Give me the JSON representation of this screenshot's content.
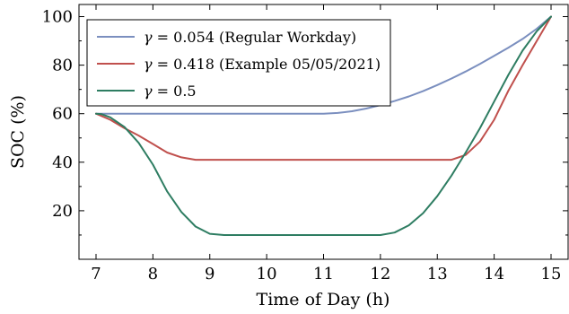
{
  "chart_data": {
    "type": "line",
    "xlabel": "Time of Day (h)",
    "ylabel": "SOC (%)",
    "xlim": [
      6.7,
      15.3
    ],
    "ylim": [
      0,
      105
    ],
    "xticks": [
      7,
      8,
      9,
      10,
      11,
      12,
      13,
      14,
      15
    ],
    "yticks": [
      20,
      40,
      60,
      80,
      100
    ],
    "grid": false,
    "legend_position": "top-left",
    "series": [
      {
        "name": "γ = 0.054 (Regular Workday)",
        "gamma_symbol": "γ",
        "gamma_eq": " = 0.054",
        "desc": "(Regular Workday)",
        "color": "#7b8fbf",
        "x": [
          7,
          7.5,
          8,
          8.5,
          9,
          9.5,
          10,
          10.5,
          11,
          11.25,
          11.5,
          11.75,
          12,
          12.25,
          12.5,
          12.75,
          13,
          13.25,
          13.5,
          13.75,
          14,
          14.25,
          14.5,
          14.75,
          15
        ],
        "y": [
          60,
          60,
          60,
          60,
          60,
          60,
          60,
          60,
          60,
          60.3,
          61,
          62.1,
          63.5,
          65.2,
          67.1,
          69.3,
          71.8,
          74.5,
          77.4,
          80.5,
          83.8,
          87.2,
          90.8,
          95,
          100
        ]
      },
      {
        "name": "γ = 0.418 (Example 05/05/2021)",
        "gamma_symbol": "γ",
        "gamma_eq": " = 0.418",
        "desc": "(Example 05/05/2021)",
        "color": "#c0504d",
        "x": [
          7,
          7.25,
          7.5,
          7.75,
          8,
          8.25,
          8.5,
          8.75,
          9,
          9.5,
          10,
          10.5,
          11,
          11.5,
          12,
          12.5,
          13,
          13.25,
          13.5,
          13.75,
          14,
          14.25,
          14.5,
          14.75,
          15
        ],
        "y": [
          60,
          57.5,
          54,
          51,
          47.5,
          44,
          42,
          41,
          41,
          41,
          41,
          41,
          41,
          41,
          41,
          41,
          41,
          41,
          43,
          48.5,
          57.5,
          69.5,
          80,
          90,
          100
        ]
      },
      {
        "name": "γ = 0.5",
        "gamma_symbol": "γ",
        "gamma_eq": " = 0.5",
        "desc": "",
        "color": "#2e7d62",
        "x": [
          7,
          7.1,
          7.25,
          7.5,
          7.75,
          8,
          8.25,
          8.5,
          8.75,
          9,
          9.25,
          9.5,
          10,
          10.5,
          11,
          11.5,
          12,
          12.25,
          12.5,
          12.75,
          13,
          13.25,
          13.5,
          13.75,
          14,
          14.25,
          14.5,
          14.75,
          15
        ],
        "y": [
          60,
          59.8,
          58.5,
          54.5,
          48,
          39,
          28,
          19.5,
          13.5,
          10.5,
          10,
          10,
          10,
          10,
          10,
          10,
          10,
          11,
          14,
          19,
          26,
          34.5,
          44,
          54,
          65,
          76,
          86,
          94,
          100
        ]
      }
    ]
  }
}
